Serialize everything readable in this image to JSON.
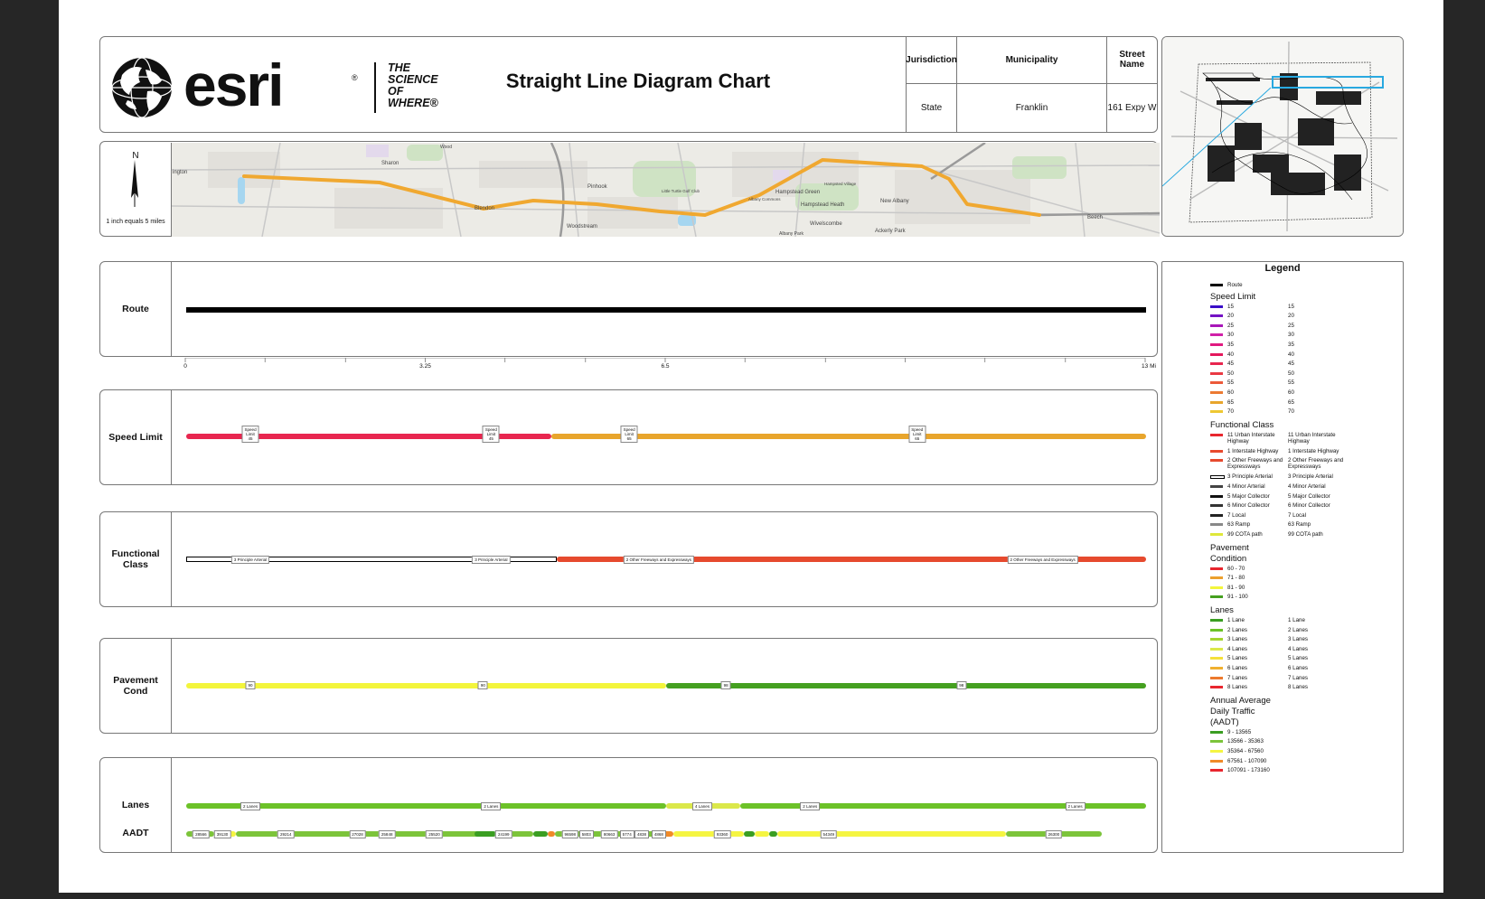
{
  "header": {
    "logo_word": "esri",
    "logo_reg": "®",
    "logo_tagline": [
      "THE",
      "SCIENCE",
      "OF",
      "WHERE®"
    ],
    "title": "Straight Line Diagram Chart",
    "table": {
      "jurisdiction_label": "Jurisdiction",
      "municipality_label": "Municipality",
      "street_label": "Street Name",
      "jurisdiction_value": "State",
      "municipality_value": "Franklin",
      "street_value": "161 Expy W"
    }
  },
  "map": {
    "north_label": "N",
    "scale_text": "1 inch equals 5 miles",
    "place_labels": [
      {
        "text": "ington"
      },
      {
        "text": "Sharon"
      },
      {
        "text": "Pinhook"
      },
      {
        "text": "Blendon"
      },
      {
        "text": "Hampstead Green"
      },
      {
        "text": "Hampstead Heath"
      },
      {
        "text": "New Albany"
      },
      {
        "text": "Woodstream"
      },
      {
        "text": "Wivelscombe"
      },
      {
        "text": "Ackerly Park"
      },
      {
        "text": "Albany Commons"
      },
      {
        "text": "Hampsted Village"
      },
      {
        "text": "Beech"
      },
      {
        "text": "Little Turtle Golf Club"
      },
      {
        "text": "Albany Park"
      },
      {
        "text": "Wood"
      }
    ],
    "route_color": "#f0a830"
  },
  "colors": {
    "route": "#000000",
    "speed45": "#e8264f",
    "speed65": "#e8a52c",
    "fc_arterial": "#000000",
    "fc_freeway": "#e64a2e",
    "pave_yellow": "#f3f53c",
    "pave_green": "#45a020",
    "lanes_green": "#6cc228",
    "lanes_yellow": "#dbe84a",
    "aadt_green": "#7cc43a",
    "aadt_yellow": "#f5f542",
    "aadt_dark": "#3a9e22",
    "aadt_orange": "#f08a28"
  },
  "rows": {
    "route_label": "Route",
    "speed_label": "Speed Limit",
    "fc_label": "Functional Class",
    "pave_label": "Pavement Cond",
    "lanes_label": "Lanes",
    "aadt_label": "AADT"
  },
  "axis": {
    "max_mi": 13,
    "ticks": [
      {
        "value": 0,
        "label": "0"
      },
      {
        "value": 3.25,
        "label": "3.25"
      },
      {
        "value": 6.5,
        "label": "6.5"
      },
      {
        "value": 13,
        "label": "13 Mi"
      }
    ],
    "minor_ticks": [
      1.08,
      2.17,
      4.33,
      5.42,
      7.58,
      8.67,
      9.75,
      10.83,
      11.92
    ]
  },
  "speed": {
    "segments": [
      {
        "from": 0,
        "to": 4.95,
        "color": "#e8264f"
      },
      {
        "from": 4.95,
        "to": 13,
        "color": "#e8a52c"
      }
    ],
    "tags": [
      {
        "at": 0.87,
        "lines": [
          "Speed",
          "Limit",
          "45"
        ]
      },
      {
        "at": 4.13,
        "lines": [
          "Speed",
          "Limit",
          "45"
        ]
      },
      {
        "at": 6.0,
        "lines": [
          "Speed",
          "Limit",
          "65"
        ]
      },
      {
        "at": 9.9,
        "lines": [
          "Speed",
          "Limit",
          "65"
        ]
      }
    ]
  },
  "functional_class": {
    "segments": [
      {
        "from": 0,
        "to": 5.02,
        "color": "#000000",
        "style": "double"
      },
      {
        "from": 5.02,
        "to": 13,
        "color": "#e64a2e",
        "style": "solid"
      }
    ],
    "tags": [
      {
        "at": 0.87,
        "text": "3 Principle Arterial"
      },
      {
        "at": 4.13,
        "text": "3 Principle Arterial"
      },
      {
        "at": 6.4,
        "text": "2 Other Freeways and Expressways"
      },
      {
        "at": 11.6,
        "text": "2 Other Freeways and Expressways"
      }
    ]
  },
  "pavement": {
    "segments": [
      {
        "from": 0,
        "to": 6.5,
        "color": "#f3f53c"
      },
      {
        "from": 6.5,
        "to": 13,
        "color": "#45a020"
      }
    ],
    "tags": [
      {
        "at": 0.87,
        "text": "90"
      },
      {
        "at": 4.02,
        "text": "90"
      },
      {
        "at": 7.31,
        "text": "98"
      },
      {
        "at": 10.5,
        "text": "98"
      }
    ]
  },
  "lanes": {
    "segments": [
      {
        "from": 0,
        "to": 6.5,
        "color": "#6cc228"
      },
      {
        "from": 6.5,
        "to": 7.5,
        "color": "#dbe84a"
      },
      {
        "from": 7.5,
        "to": 13,
        "color": "#6cc228"
      }
    ],
    "tags": [
      {
        "at": 0.87,
        "text": "2 Lanes"
      },
      {
        "at": 4.13,
        "text": "2 Lanes"
      },
      {
        "at": 6.99,
        "text": "4 Lanes"
      },
      {
        "at": 8.45,
        "text": "2 Lanes"
      },
      {
        "at": 12.04,
        "text": "2 Lanes"
      }
    ]
  },
  "aadt": {
    "segments": [
      {
        "from": 0,
        "to": 0.38,
        "color": "#7cc43a"
      },
      {
        "from": 0.38,
        "to": 0.67,
        "color": "#f5f542"
      },
      {
        "from": 0.67,
        "to": 4.1,
        "color": "#7cc43a"
      },
      {
        "from": 3.9,
        "to": 4.2,
        "color": "#3a9e22"
      },
      {
        "from": 4.2,
        "to": 4.7,
        "color": "#7cc43a"
      },
      {
        "from": 4.7,
        "to": 4.9,
        "color": "#3a9e22"
      },
      {
        "from": 4.9,
        "to": 5.0,
        "color": "#f08a28"
      },
      {
        "from": 5.0,
        "to": 6.45,
        "color": "#7cc43a"
      },
      {
        "from": 6.45,
        "to": 6.6,
        "color": "#f08a28"
      },
      {
        "from": 6.6,
        "to": 7.55,
        "color": "#f5f542"
      },
      {
        "from": 7.55,
        "to": 7.7,
        "color": "#3a9e22"
      },
      {
        "from": 7.7,
        "to": 7.9,
        "color": "#f5f542"
      },
      {
        "from": 7.9,
        "to": 8.0,
        "color": "#3a9e22"
      },
      {
        "from": 8.0,
        "to": 11.1,
        "color": "#f5f542"
      },
      {
        "from": 11.1,
        "to": 12.4,
        "color": "#7cc43a"
      }
    ],
    "tags": [
      {
        "at": 0.2,
        "text": "28566"
      },
      {
        "at": 0.49,
        "text": "39130"
      },
      {
        "at": 1.35,
        "text": "29214"
      },
      {
        "at": 2.32,
        "text": "27028"
      },
      {
        "at": 2.72,
        "text": "25848"
      },
      {
        "at": 3.36,
        "text": "25520"
      },
      {
        "at": 4.3,
        "text": "24199"
      },
      {
        "at": 5.2,
        "text": "96598"
      },
      {
        "at": 5.42,
        "text": "5803"
      },
      {
        "at": 5.73,
        "text": "80663"
      },
      {
        "at": 5.97,
        "text": "5774"
      },
      {
        "at": 6.17,
        "text": "4838"
      },
      {
        "at": 6.4,
        "text": "4868"
      },
      {
        "at": 7.26,
        "text": "93360"
      },
      {
        "at": 8.7,
        "text": "54349"
      },
      {
        "at": 11.75,
        "text": "26300"
      }
    ]
  },
  "legend": {
    "title": "Legend",
    "route_label": "Route",
    "speed_heading": "Speed Limit",
    "speed_items": [
      {
        "a": "15",
        "b": "15",
        "color": "#3a0ec8"
      },
      {
        "a": "20",
        "b": "20",
        "color": "#7412c4"
      },
      {
        "a": "25",
        "b": "25",
        "color": "#a816b8"
      },
      {
        "a": "30",
        "b": "30",
        "color": "#d020a8"
      },
      {
        "a": "35",
        "b": "35",
        "color": "#e01a80"
      },
      {
        "a": "40",
        "b": "40",
        "color": "#e4185c"
      },
      {
        "a": "45",
        "b": "45",
        "color": "#e8264f"
      },
      {
        "a": "50",
        "b": "50",
        "color": "#ea3a44"
      },
      {
        "a": "55",
        "b": "55",
        "color": "#ec5a3a"
      },
      {
        "a": "60",
        "b": "60",
        "color": "#ec7a32"
      },
      {
        "a": "65",
        "b": "65",
        "color": "#e8a52c"
      },
      {
        "a": "70",
        "b": "70",
        "color": "#eec832"
      }
    ],
    "fc_heading": "Functional Class",
    "fc_items": [
      {
        "a": "11 Urban Interstate Highway",
        "b": "11 Urban Interstate Highway",
        "color": "#e8262e"
      },
      {
        "a": "1 Interstate Highway",
        "b": "1 Interstate Highway",
        "color": "#e84a2e"
      },
      {
        "a": "2 Other Freeways and Expressways",
        "b": "2 Other Freeways and Expressways",
        "color": "#e64a2e"
      },
      {
        "a": "3 Principle Arterial",
        "b": "3 Principle Arterial",
        "color": "#000000"
      },
      {
        "a": "4 Minor Arterial",
        "b": "4 Minor Arterial",
        "color": "#444444"
      },
      {
        "a": "5 Major Collector",
        "b": "5 Major Collector",
        "color": "#111111"
      },
      {
        "a": "6 Minor Collector",
        "b": "6 Minor Collector",
        "color": "#333333"
      },
      {
        "a": "7 Local",
        "b": "7 Local",
        "color": "#222222"
      },
      {
        "a": "63 Ramp",
        "b": "63 Ramp",
        "color": "#888888"
      },
      {
        "a": "99 COTA path",
        "b": "99 COTA path",
        "color": "#dfe83a"
      }
    ],
    "pave_heading": "Pavement Condition",
    "pave_items": [
      {
        "a": "60 - 70",
        "color": "#e8262e"
      },
      {
        "a": "71 - 80",
        "color": "#eca02e"
      },
      {
        "a": "81 - 90",
        "color": "#f3f53c"
      },
      {
        "a": "91 - 100",
        "color": "#45a020"
      }
    ],
    "lanes_heading": "Lanes",
    "lanes_items": [
      {
        "a": "1 Lane",
        "b": "1 Lane",
        "color": "#3a9e22"
      },
      {
        "a": "2 Lanes",
        "b": "2 Lanes",
        "color": "#6cc228"
      },
      {
        "a": "3 Lanes",
        "b": "3 Lanes",
        "color": "#a4d430"
      },
      {
        "a": "4 Lanes",
        "b": "4 Lanes",
        "color": "#dbe84a"
      },
      {
        "a": "5 Lanes",
        "b": "5 Lanes",
        "color": "#f5e03a"
      },
      {
        "a": "6 Lanes",
        "b": "6 Lanes",
        "color": "#f0b030"
      },
      {
        "a": "7 Lanes",
        "b": "7 Lanes",
        "color": "#ec7a2e"
      },
      {
        "a": "8 Lanes",
        "b": "8 Lanes",
        "color": "#e8262e"
      }
    ],
    "aadt_heading": "Annual Average Daily Traffic (AADT)",
    "aadt_items": [
      {
        "a": "9 - 13565",
        "color": "#3a9e22"
      },
      {
        "a": "13566 - 35363",
        "color": "#7cc43a"
      },
      {
        "a": "35364 - 67560",
        "color": "#f5f542"
      },
      {
        "a": "67561 - 107090",
        "color": "#f08a28"
      },
      {
        "a": "107091 - 173160",
        "color": "#e8262e"
      }
    ]
  }
}
